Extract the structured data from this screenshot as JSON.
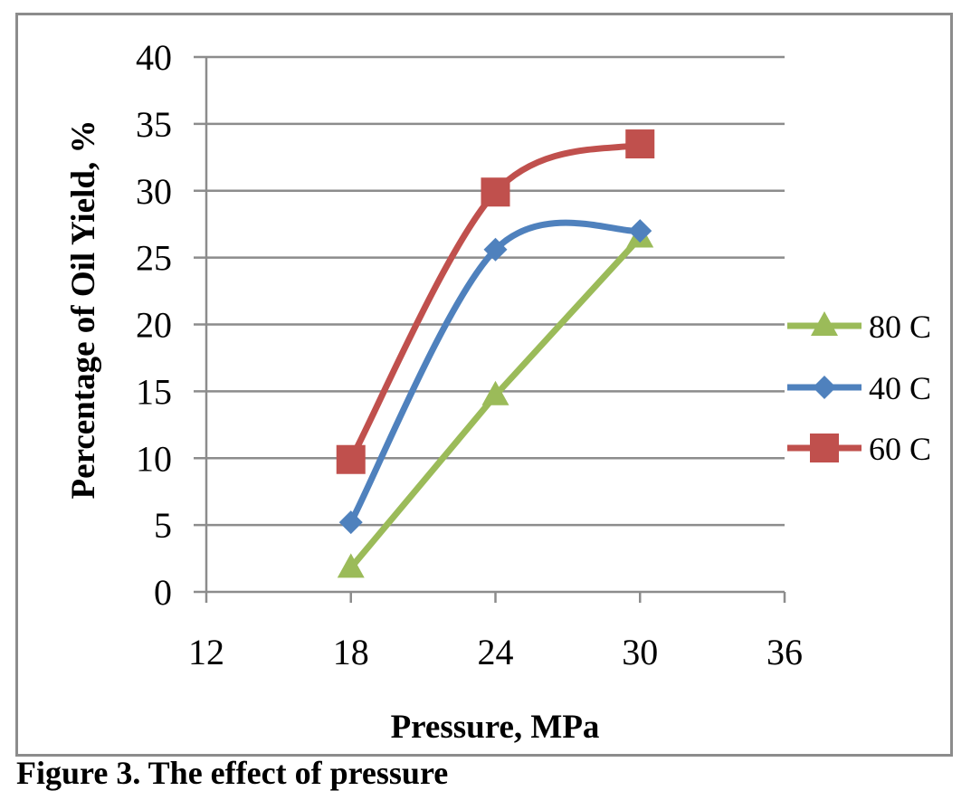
{
  "chart_data": {
    "type": "line",
    "title": "",
    "xlabel": "Pressure, MPa",
    "ylabel": "Percentage of Oil Yield, %",
    "xlim": [
      12,
      36
    ],
    "ylim": [
      0,
      40
    ],
    "x_ticks": [
      12,
      18,
      24,
      30,
      36
    ],
    "y_ticks": [
      0,
      5,
      10,
      15,
      20,
      25,
      30,
      35,
      40
    ],
    "grid": "horizontal",
    "legend_position": "right",
    "smooth": true,
    "series": [
      {
        "name": "80 C",
        "color": "#9bbb59",
        "marker": "triangle",
        "smooth": false,
        "x": [
          18,
          24,
          30
        ],
        "y": [
          1.8,
          14.7,
          26.5
        ]
      },
      {
        "name": "40 C",
        "color": "#4f81bd",
        "marker": "diamond",
        "smooth": true,
        "x": [
          18,
          24,
          30
        ],
        "y": [
          5.2,
          25.6,
          27.0
        ]
      },
      {
        "name": "60 C",
        "color": "#c0504d",
        "marker": "square",
        "smooth": true,
        "x": [
          18,
          24,
          30
        ],
        "y": [
          9.9,
          29.9,
          33.5
        ]
      }
    ]
  },
  "caption": {
    "text": "Figure 3. The effect of pressure"
  }
}
